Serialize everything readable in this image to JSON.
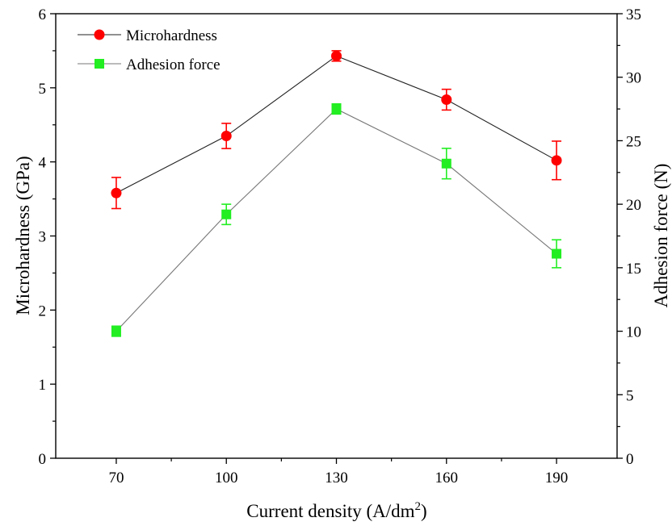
{
  "chart_data": {
    "type": "line",
    "categories": [
      "70",
      "100",
      "130",
      "160",
      "190"
    ],
    "x": [
      70,
      100,
      130,
      160,
      190
    ],
    "xlabel": "Current density (A/dm",
    "xlabel_sup": "2",
    "xlabel_end": ")",
    "xlim": [
      53.5,
      206.5
    ],
    "y_left": {
      "label": "Microhardness (GPa)",
      "lim": [
        0,
        6
      ],
      "ticks": [
        0,
        1,
        2,
        3,
        4,
        5,
        6
      ]
    },
    "y_right": {
      "label": "Adhesion force (N)",
      "lim": [
        0,
        35
      ],
      "ticks": [
        0,
        5,
        10,
        15,
        20,
        25,
        30,
        35
      ]
    },
    "legend_position": "top-left",
    "grid": false,
    "series": [
      {
        "name": "Microhardness",
        "axis": "left",
        "marker": "circle",
        "color": "#ff0000",
        "line_color": "#222222",
        "values": [
          3.58,
          4.35,
          5.43,
          4.84,
          4.02
        ],
        "errors": [
          0.21,
          0.17,
          0.07,
          0.14,
          0.26
        ]
      },
      {
        "name": "Adhesion force",
        "axis": "right",
        "marker": "square",
        "color": "#22ee22",
        "line_color": "#777777",
        "values": [
          10.0,
          19.2,
          27.5,
          23.2,
          16.1
        ],
        "errors": [
          0.4,
          0.8,
          0.4,
          1.2,
          1.1
        ]
      }
    ]
  }
}
